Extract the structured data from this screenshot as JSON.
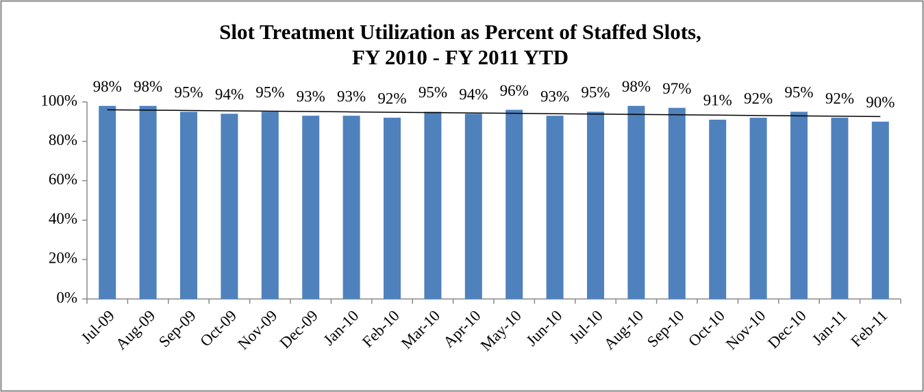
{
  "chart_data": {
    "type": "bar",
    "title": "Slot Treatment Utilization as Percent of Staffed Slots,",
    "subtitle": "FY 2010 - FY 2011 YTD",
    "categories": [
      "Jul-09",
      "Aug-09",
      "Sep-09",
      "Oct-09",
      "Nov-09",
      "Dec-09",
      "Jan-10",
      "Feb-10",
      "Mar-10",
      "Apr-10",
      "May-10",
      "Jun-10",
      "Jul-10",
      "Aug-10",
      "Sep-10",
      "Oct-10",
      "Nov-10",
      "Dec-10",
      "Jan-11",
      "Feb-11"
    ],
    "values": [
      98,
      98,
      95,
      94,
      95,
      93,
      93,
      92,
      95,
      94,
      96,
      93,
      95,
      98,
      97,
      91,
      92,
      95,
      92,
      90
    ],
    "value_labels": [
      "98%",
      "98%",
      "95%",
      "94%",
      "95%",
      "93%",
      "93%",
      "92%",
      "95%",
      "94%",
      "96%",
      "93%",
      "95%",
      "98%",
      "97%",
      "91%",
      "92%",
      "95%",
      "92%",
      "90%"
    ],
    "color": "#4f81bd",
    "trendline": "linear",
    "ylim": [
      0,
      100
    ],
    "yticks": [
      {
        "value": 0,
        "label": "0%"
      },
      {
        "value": 20,
        "label": "20%"
      },
      {
        "value": 40,
        "label": "40%"
      },
      {
        "value": 60,
        "label": "60%"
      },
      {
        "value": 80,
        "label": "80%"
      },
      {
        "value": 100,
        "label": "100%"
      }
    ],
    "grid": false
  }
}
